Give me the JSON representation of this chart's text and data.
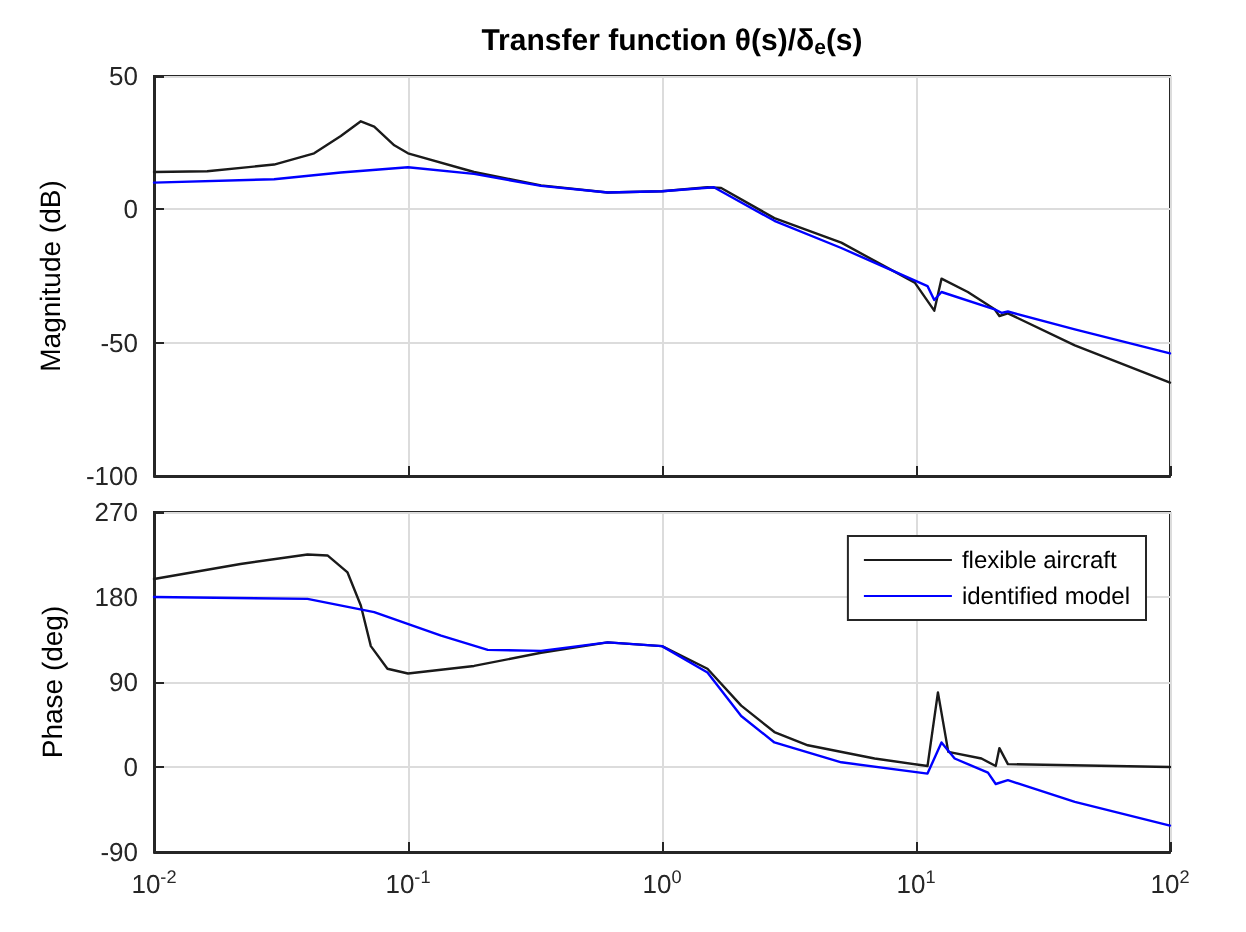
{
  "chart_data": [
    {
      "type": "line",
      "title": "Transfer function θ(s)/δ$_{e}$(s)",
      "ylabel": "Magnitude (dB)",
      "log": "x",
      "grid": true,
      "marker": "none",
      "line_style": "solid",
      "tick_labels": "y",
      "xlim": [
        0.01,
        100
      ],
      "xticks": [
        {
          "value": 0.01,
          "label": null
        },
        {
          "value": 0.1,
          "label": null
        },
        {
          "value": 1,
          "label": null
        },
        {
          "value": 10,
          "label": null
        },
        {
          "value": 100,
          "label": null
        }
      ],
      "ylim": [
        -100,
        50
      ],
      "yticks": [
        -100,
        -50,
        0,
        50
      ],
      "series": [
        {
          "color": "#1a1a1a",
          "x": [
            0.01,
            0.0162,
            0.0297,
            0.0427,
            0.0544,
            0.0652,
            0.0736,
            0.0883,
            0.1,
            0.182,
            0.334,
            0.611,
            1,
            1.51,
            1.71,
            2.77,
            5.08,
            9.89,
            11.8,
            12.6,
            16.0,
            20.4,
            21.3,
            23.0,
            42.2,
            100
          ],
          "values": [
            14,
            14.3,
            16.8,
            21,
            27.5,
            33,
            31,
            24,
            21,
            14,
            9,
            6.3,
            6.8,
            8.3,
            8,
            -3.3,
            -12.5,
            -27.5,
            -38,
            -26,
            -31,
            -37.5,
            -40,
            -39,
            -51,
            -65
          ]
        },
        {
          "color": "#0000ff",
          "x": [
            0.01,
            0.0297,
            0.0544,
            0.1,
            0.182,
            0.334,
            0.611,
            1,
            1.6,
            2.77,
            5.08,
            11.1,
            11.8,
            12.6,
            20.4,
            21.7,
            23.0,
            42.2,
            100
          ],
          "values": [
            10,
            11.3,
            13.8,
            15.8,
            13.3,
            8.8,
            6.3,
            6.8,
            8.3,
            -4.3,
            -14.5,
            -28.8,
            -34,
            -31,
            -37.5,
            -38.8,
            -38.3,
            -45,
            -54
          ]
        }
      ]
    },
    {
      "type": "line",
      "ylabel": "Phase (deg)",
      "log": "x",
      "grid": true,
      "marker": "none",
      "line_style": "solid",
      "legend": "top right",
      "xlim": [
        0.01,
        100
      ],
      "xticks": [
        {
          "value": 0.01,
          "label": "10$^{-2}$"
        },
        {
          "value": 0.1,
          "label": "10$^{-1}$"
        },
        {
          "value": 1,
          "label": "10$^{0}$"
        },
        {
          "value": 10,
          "label": "10$^{1}$"
        },
        {
          "value": 100,
          "label": "10$^{2}$"
        }
      ],
      "ylim": [
        -90,
        270
      ],
      "yticks": [
        -90,
        0,
        90,
        180,
        270
      ],
      "series": [
        {
          "name": "flexible aircraft",
          "color": "#1a1a1a",
          "x": [
            0.01,
            0.0219,
            0.0402,
            0.0482,
            0.0578,
            0.0652,
            0.0714,
            0.083,
            0.1,
            0.182,
            0.334,
            0.611,
            1,
            1.51,
            2.05,
            2.77,
            3.75,
            6.87,
            11.1,
            12.2,
            13.4,
            18.1,
            20.6,
            21.3,
            23.0,
            100
          ],
          "values": [
            199,
            215,
            225,
            224,
            206,
            171,
            128,
            104,
            99,
            107,
            121,
            132,
            128,
            104,
            65,
            37,
            23,
            9,
            1,
            79,
            16,
            9,
            1,
            20,
            3,
            0
          ]
        },
        {
          "name": "identified model",
          "color": "#0000ff",
          "x": [
            0.01,
            0.0402,
            0.0736,
            0.135,
            0.206,
            0.334,
            0.611,
            1,
            1.51,
            2.05,
            2.77,
            5.08,
            11.1,
            12.6,
            14.2,
            19.2,
            20.6,
            23.0,
            42.2,
            100
          ],
          "values": [
            180,
            178,
            164,
            139,
            124,
            123,
            132,
            128,
            100,
            54,
            26,
            5,
            -7,
            26,
            9,
            -6,
            -18,
            -14,
            -37,
            -62
          ]
        }
      ]
    }
  ]
}
